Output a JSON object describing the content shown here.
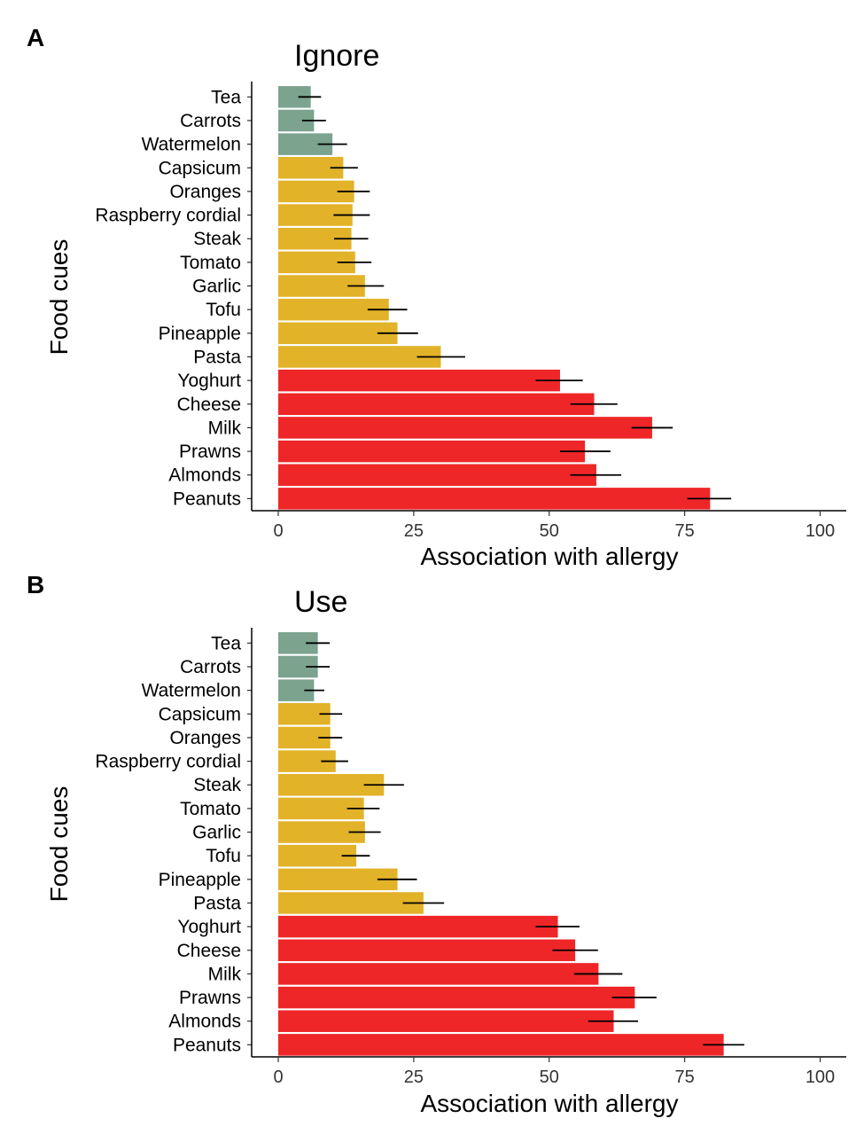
{
  "figure": {
    "panels": [
      "A",
      "B"
    ]
  },
  "chart_data": [
    {
      "type": "bar",
      "orientation": "horizontal",
      "panel_label": "A",
      "title": "Ignore",
      "xlabel": "Association with allergy",
      "ylabel": "Food cues",
      "xlim": [
        0,
        100
      ],
      "xticks": [
        "0",
        "25",
        "50",
        "75",
        "100"
      ],
      "grid": false,
      "categories": [
        "Tea",
        "Carrots",
        "Watermelon",
        "Capsicum",
        "Oranges",
        "Raspberry cordial",
        "Steak",
        "Tomato",
        "Garlic",
        "Tofu",
        "Pineapple",
        "Pasta",
        "Yoghurt",
        "Cheese",
        "Milk",
        "Prawns",
        "Almonds",
        "Peanuts"
      ],
      "groups": [
        "green",
        "green",
        "green",
        "yellow",
        "yellow",
        "yellow",
        "yellow",
        "yellow",
        "yellow",
        "yellow",
        "yellow",
        "yellow",
        "red",
        "red",
        "red",
        "red",
        "red",
        "red"
      ],
      "group_colors": {
        "green": "#7ba38e",
        "yellow": "#e2b229",
        "red": "#ee2628"
      },
      "values": [
        6,
        6.6,
        10,
        12,
        14,
        13.7,
        13.5,
        14.2,
        16,
        20.4,
        22,
        30,
        52,
        58.3,
        69,
        56.6,
        58.7,
        79.7
      ],
      "error_low": [
        3.7,
        4.4,
        7.3,
        9.6,
        10.9,
        10.2,
        10.3,
        10.9,
        12.8,
        16.5,
        18.3,
        25.6,
        47.5,
        53.9,
        65.2,
        52,
        53.9,
        75.5
      ],
      "error_high": [
        7.9,
        8.8,
        12.7,
        14.7,
        16.9,
        16.9,
        16.6,
        17.2,
        19.5,
        23.8,
        25.8,
        34.5,
        56.2,
        62.6,
        72.8,
        61.3,
        63.3,
        83.6
      ]
    },
    {
      "type": "bar",
      "orientation": "horizontal",
      "panel_label": "B",
      "title": "Use",
      "xlabel": "Association with allergy",
      "ylabel": "Food cues",
      "xlim": [
        0,
        100
      ],
      "xticks": [
        "0",
        "25",
        "50",
        "75",
        "100"
      ],
      "grid": false,
      "categories": [
        "Tea",
        "Carrots",
        "Watermelon",
        "Capsicum",
        "Oranges",
        "Raspberry cordial",
        "Steak",
        "Tomato",
        "Garlic",
        "Tofu",
        "Pineapple",
        "Pasta",
        "Yoghurt",
        "Cheese",
        "Milk",
        "Prawns",
        "Almonds",
        "Peanuts"
      ],
      "groups": [
        "green",
        "green",
        "green",
        "yellow",
        "yellow",
        "yellow",
        "yellow",
        "yellow",
        "yellow",
        "yellow",
        "yellow",
        "yellow",
        "red",
        "red",
        "red",
        "red",
        "red",
        "red"
      ],
      "group_colors": {
        "green": "#7ba38e",
        "yellow": "#e2b229",
        "red": "#ee2628"
      },
      "values": [
        7.3,
        7.3,
        6.6,
        9.6,
        9.6,
        10.6,
        19.5,
        15.8,
        16,
        14.4,
        22,
        26.8,
        51.6,
        54.8,
        59.1,
        65.8,
        61.9,
        82.2
      ],
      "error_low": [
        5.1,
        5.1,
        4.8,
        7.6,
        7.4,
        7.9,
        15.8,
        12.7,
        13,
        11.7,
        18.3,
        23,
        47.5,
        50.6,
        54.6,
        61.6,
        57.2,
        78.4
      ],
      "error_high": [
        9.5,
        9.5,
        8.5,
        11.8,
        11.8,
        12.9,
        23.2,
        18.7,
        18.9,
        16.9,
        25.6,
        30.6,
        55.6,
        59,
        63.5,
        69.8,
        66.4,
        86
      ]
    }
  ]
}
